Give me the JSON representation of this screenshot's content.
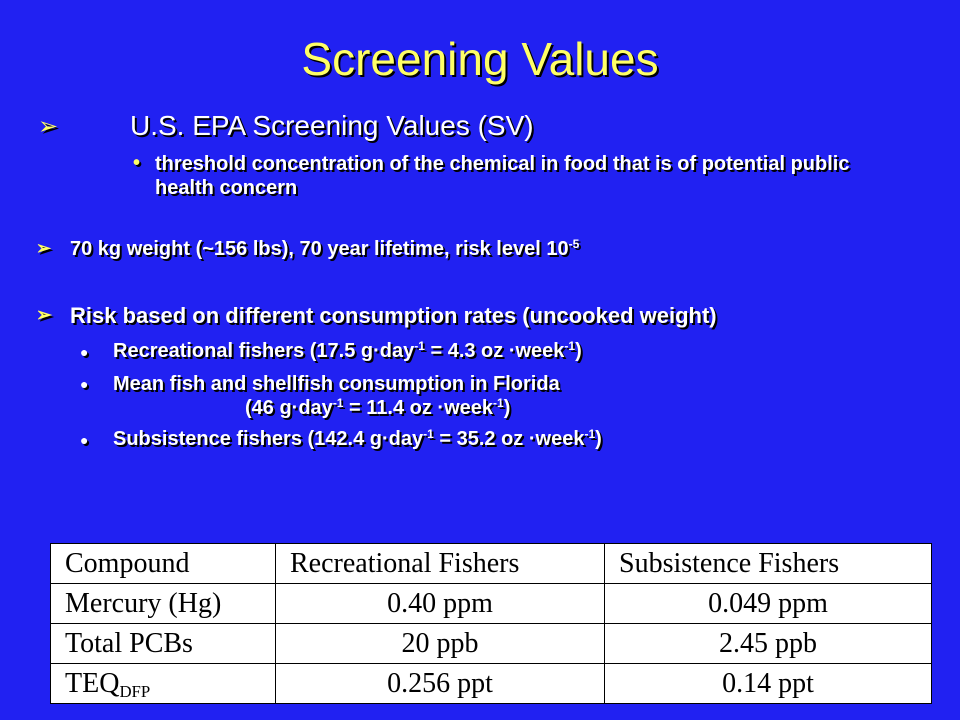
{
  "title": "Screening Values",
  "items": [
    {
      "level": 1,
      "lines": [
        [
          "U.S. EPA Screening Values (SV)"
        ]
      ]
    },
    {
      "level": 2,
      "lines": [
        [
          "threshold concentration of the chemical in food that is of potential public health concern"
        ]
      ]
    },
    {
      "level": 1,
      "lines": [
        [
          "70 kg weight (~156 lbs), 70 year lifetime, risk level 10",
          {
            "text": "-5",
            "style": "sup"
          }
        ]
      ]
    },
    {
      "level": 1,
      "lines": [
        [
          "Risk based on different consumption rates (uncooked weight)"
        ]
      ]
    },
    {
      "level": 3,
      "lines": [
        [
          "Recreational fishers (17.5 g·day",
          {
            "text": "-1",
            "style": "sup"
          },
          " = 4.3 oz ·week",
          {
            "text": "-1",
            "style": "sup"
          },
          ")"
        ]
      ]
    },
    {
      "level": 3,
      "lines": [
        [
          "Mean fish and shellfish consumption in Florida"
        ],
        [
          "(46 g·day",
          {
            "text": "-1",
            "style": "sup"
          },
          " = 11.4 oz ·week",
          {
            "text": "-1",
            "style": "sup"
          },
          ")"
        ]
      ]
    },
    {
      "level": 3,
      "lines": [
        [
          "Subsistence fishers (142.4 g·day",
          {
            "text": "-1",
            "style": "sup"
          },
          " = 35.2 oz ·week",
          {
            "text": "-1",
            "style": "sup"
          },
          ")"
        ]
      ]
    }
  ],
  "table": {
    "header": [
      "Compound",
      "Recreational Fishers",
      "Subsistence Fishers"
    ],
    "rows": [
      [
        [
          "Mercury (Hg)"
        ],
        [
          "0.40 ppm"
        ],
        [
          "0.049 ppm"
        ]
      ],
      [
        [
          "Total PCBs"
        ],
        [
          "20 ppb"
        ],
        [
          "2.45 ppb"
        ]
      ],
      [
        [
          "TEQ",
          {
            "text": "DFP",
            "style": "sub"
          }
        ],
        [
          "0.256 ppt"
        ],
        [
          "0.14 ppt"
        ]
      ]
    ]
  }
}
